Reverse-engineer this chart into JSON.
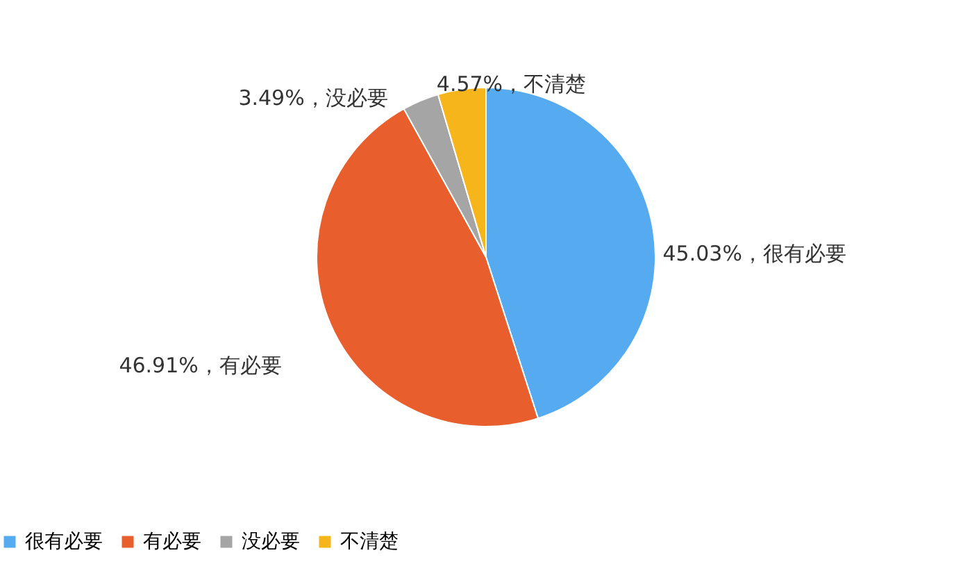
{
  "chart_data": {
    "type": "pie",
    "categories": [
      "很有必要",
      "有必要",
      "没必要",
      "不清楚"
    ],
    "values": [
      45.03,
      46.91,
      3.49,
      4.57
    ],
    "colors": [
      "#55aaf0",
      "#e85f2d",
      "#a5a5a5",
      "#f5b51b"
    ],
    "value_labels": [
      "45.03%，很有必要",
      "46.91%，有必要",
      "3.49%，没必要",
      "4.57%，不清楚"
    ],
    "legend": "bottom"
  }
}
